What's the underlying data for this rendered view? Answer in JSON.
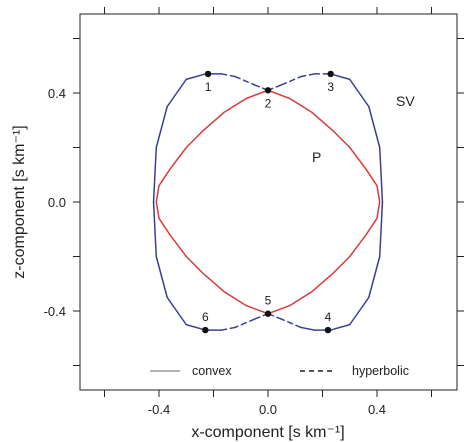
{
  "chart_data": {
    "type": "line",
    "xlabel": "x-component [s km⁻¹]",
    "ylabel": "z-component [s km⁻¹]",
    "xlim": [
      -0.6,
      0.6
    ],
    "ylim": [
      -0.6,
      0.6
    ],
    "x_tick_labels": [
      "-0.4",
      "0.0",
      "0.4"
    ],
    "y_tick_labels": [
      "-0.4",
      "0.0",
      "0.4"
    ],
    "x_ticks": [
      -0.4,
      0.0,
      0.4
    ],
    "y_ticks": [
      -0.4,
      0.0,
      0.4
    ],
    "grid": false,
    "series": [
      {
        "name": "P",
        "color": "#d93a3a",
        "line": "solid",
        "x": [
          0.0,
          0.08,
          0.16,
          0.24,
          0.3,
          0.36,
          0.4,
          0.41,
          0.4,
          0.36,
          0.3,
          0.24,
          0.16,
          0.08,
          0.0,
          -0.08,
          -0.16,
          -0.24,
          -0.3,
          -0.36,
          -0.4,
          -0.41,
          -0.4,
          -0.36,
          -0.3,
          -0.24,
          -0.16,
          -0.08,
          0.0
        ],
        "z": [
          0.41,
          0.38,
          0.33,
          0.26,
          0.2,
          0.12,
          0.06,
          0.0,
          -0.06,
          -0.12,
          -0.2,
          -0.26,
          -0.33,
          -0.38,
          -0.41,
          -0.38,
          -0.33,
          -0.26,
          -0.2,
          -0.12,
          -0.06,
          0.0,
          0.06,
          0.12,
          0.2,
          0.26,
          0.33,
          0.38,
          0.41
        ]
      },
      {
        "name": "SV",
        "color": "#3a3f96",
        "line": "solid (convex) / dashed (hyperbolic)",
        "x": [
          0.0,
          0.05,
          0.12,
          0.17,
          0.23,
          0.3,
          0.37,
          0.41,
          0.42,
          0.41,
          0.37,
          0.3,
          0.23,
          0.17,
          0.12,
          0.05,
          0.0,
          -0.05,
          -0.12,
          -0.17,
          -0.23,
          -0.3,
          -0.37,
          -0.41,
          -0.42,
          -0.41,
          -0.37,
          -0.3,
          -0.23,
          -0.17,
          -0.12,
          -0.05,
          0.0
        ],
        "z": [
          0.41,
          0.43,
          0.46,
          0.47,
          0.47,
          0.45,
          0.35,
          0.2,
          0.0,
          -0.2,
          -0.35,
          -0.45,
          -0.47,
          -0.47,
          -0.46,
          -0.43,
          -0.41,
          -0.43,
          -0.46,
          -0.47,
          -0.47,
          -0.45,
          -0.35,
          -0.2,
          0.0,
          0.2,
          0.35,
          0.45,
          0.47,
          0.47,
          0.46,
          0.43,
          0.41
        ]
      }
    ],
    "marked_points": [
      {
        "label": "1",
        "x": -0.22,
        "z": 0.47
      },
      {
        "label": "2",
        "x": 0.0,
        "z": 0.41
      },
      {
        "label": "3",
        "x": 0.23,
        "z": 0.47
      },
      {
        "label": "4",
        "x": 0.22,
        "z": -0.47
      },
      {
        "label": "5",
        "x": 0.0,
        "z": -0.41
      },
      {
        "label": "6",
        "x": -0.23,
        "z": -0.47
      }
    ],
    "curve_labels": {
      "p": "P",
      "sv": "SV"
    },
    "legend": {
      "placement": "bottom",
      "entries": [
        {
          "label": "convex",
          "line": "solid",
          "color": "#888888"
        },
        {
          "label": "hyperbolic",
          "line": "dashed",
          "color": "#222222"
        }
      ]
    }
  }
}
